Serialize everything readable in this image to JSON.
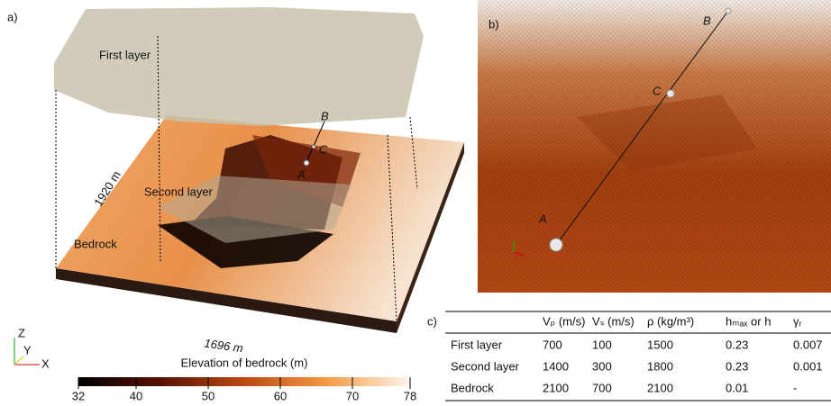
{
  "panel_a": {
    "label": "a)",
    "first_layer": "First layer",
    "second_layer": "Second layer",
    "bedrock": "Bedrock",
    "width_label": "1920 m",
    "length_label": "1696 m",
    "points": [
      "A",
      "B",
      "C"
    ],
    "axes": [
      "Z",
      "Y",
      "X"
    ]
  },
  "colorbar": {
    "title": "Elevation of bedrock (m)",
    "lim": [
      32,
      78
    ],
    "ticks": [
      32,
      40,
      50,
      60,
      70,
      78
    ]
  },
  "panel_b": {
    "label": "b)",
    "points": [
      "A",
      "B",
      "C"
    ]
  },
  "table": {
    "label": "c)",
    "columns": [
      "Vₚ (m/s)",
      "Vₛ (m/s)",
      "ρ (kg/m³)",
      "hₘₐₓ or h",
      "γᵣ"
    ],
    "rows": [
      [
        "First layer",
        700,
        100,
        1500,
        0.23,
        0.007
      ],
      [
        "Second layer",
        1400,
        300,
        1800,
        0.23,
        0.001
      ],
      [
        "Bedrock",
        2100,
        700,
        2100,
        0.01,
        "-"
      ]
    ]
  }
}
